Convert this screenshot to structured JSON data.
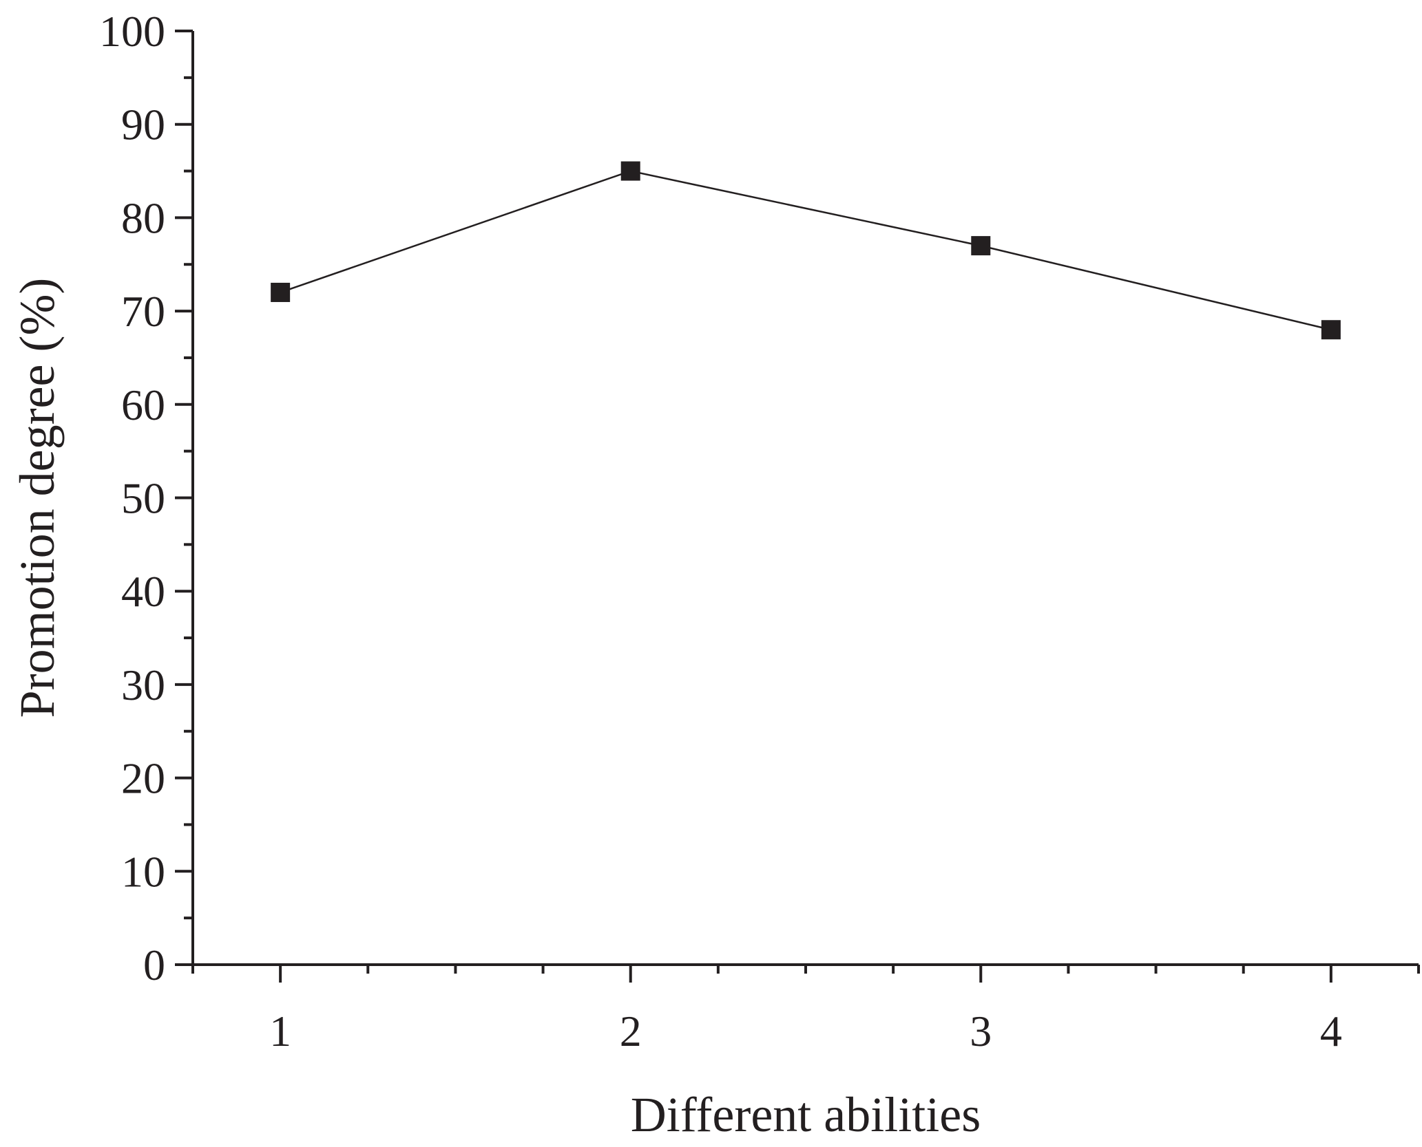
{
  "chart_data": {
    "type": "line",
    "title": "",
    "xlabel": "Different abilities",
    "ylabel": "Promotion degree (%)",
    "x": [
      1,
      2,
      3,
      4
    ],
    "x_tick_labels": [
      "1",
      "2",
      "3",
      "4"
    ],
    "xlim": [
      0.75,
      4.25
    ],
    "ylim": [
      0,
      100
    ],
    "y_ticks": [
      0,
      10,
      20,
      30,
      40,
      50,
      60,
      70,
      80,
      90,
      100
    ],
    "y_tick_labels": [
      "0",
      "10",
      "20",
      "30",
      "40",
      "50",
      "60",
      "70",
      "80",
      "90",
      "100"
    ],
    "series": [
      {
        "values": [
          72,
          85,
          77,
          68
        ],
        "marker": "square",
        "color": "#231f20"
      }
    ],
    "grid": false,
    "legend": "none"
  }
}
